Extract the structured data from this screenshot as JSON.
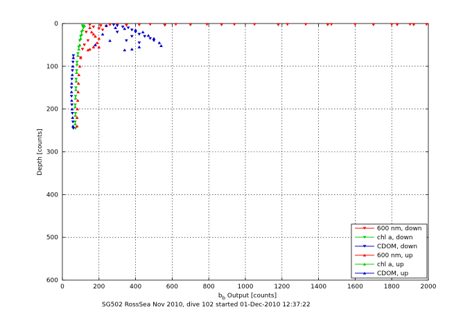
{
  "chart_data": {
    "type": "scatter",
    "xlabel_main": "b",
    "xlabel_sub": "b",
    "xlabel_rest": " Output [counts]",
    "ylabel": "Depth [counts]",
    "caption": "SG502 RossSea Nov 2010, dive 102 started 01-Dec-2010 12:37:22",
    "xlim": [
      0,
      2000
    ],
    "ylim": [
      0,
      600
    ],
    "y_reversed": true,
    "grid": true,
    "legend_position": "bottom-right",
    "xticks": [
      0,
      200,
      400,
      600,
      800,
      1000,
      1200,
      1400,
      1600,
      1800,
      2000
    ],
    "yticks": [
      0,
      100,
      200,
      300,
      400,
      500,
      600
    ],
    "series": [
      {
        "name": "600 nm, down",
        "color": "#ff0000",
        "marker": "triangle-down",
        "points": [
          [
            150,
            3
          ],
          [
            170,
            8
          ],
          [
            200,
            12
          ],
          [
            210,
            5
          ],
          [
            220,
            15
          ],
          [
            240,
            6
          ],
          [
            260,
            3
          ],
          [
            300,
            2
          ],
          [
            350,
            4
          ],
          [
            420,
            3
          ],
          [
            480,
            2
          ],
          [
            560,
            4
          ],
          [
            620,
            2
          ],
          [
            700,
            3
          ],
          [
            790,
            2
          ],
          [
            870,
            3
          ],
          [
            940,
            2
          ],
          [
            1050,
            2
          ],
          [
            1180,
            3
          ],
          [
            1230,
            2
          ],
          [
            1330,
            2
          ],
          [
            1450,
            3
          ],
          [
            1470,
            2
          ],
          [
            1600,
            2
          ],
          [
            1700,
            3
          ],
          [
            1800,
            2
          ],
          [
            1830,
            3
          ],
          [
            1900,
            2
          ],
          [
            1920,
            3
          ],
          [
            1990,
            2
          ],
          [
            130,
            20
          ],
          [
            140,
            40
          ],
          [
            120,
            50
          ],
          [
            110,
            60
          ],
          [
            100,
            80
          ]
        ]
      },
      {
        "name": "chl a, down",
        "color": "#00cc00",
        "marker": "triangle-down",
        "points": [
          [
            110,
            5
          ],
          [
            115,
            10
          ],
          [
            105,
            20
          ],
          [
            100,
            30
          ],
          [
            95,
            40
          ],
          [
            90,
            55
          ],
          [
            85,
            70
          ],
          [
            80,
            90
          ],
          [
            78,
            110
          ],
          [
            75,
            130
          ],
          [
            74,
            150
          ],
          [
            72,
            170
          ],
          [
            70,
            190
          ],
          [
            72,
            210
          ],
          [
            70,
            230
          ],
          [
            72,
            245
          ]
        ]
      },
      {
        "name": "CDOM, down",
        "color": "#0000cc",
        "marker": "triangle-down",
        "points": [
          [
            280,
            3
          ],
          [
            300,
            5
          ],
          [
            330,
            8
          ],
          [
            360,
            10
          ],
          [
            380,
            15
          ],
          [
            400,
            20
          ],
          [
            420,
            25
          ],
          [
            450,
            30
          ],
          [
            480,
            35
          ],
          [
            500,
            40
          ],
          [
            380,
            30
          ],
          [
            420,
            45
          ],
          [
            350,
            40
          ],
          [
            300,
            20
          ],
          [
            60,
            75
          ],
          [
            58,
            90
          ],
          [
            55,
            110
          ],
          [
            52,
            130
          ],
          [
            50,
            150
          ],
          [
            50,
            170
          ],
          [
            52,
            190
          ],
          [
            55,
            210
          ],
          [
            58,
            230
          ],
          [
            60,
            245
          ]
        ]
      },
      {
        "name": "600 nm, up",
        "color": "#ff0000",
        "marker": "triangle-up",
        "points": [
          [
            150,
            10
          ],
          [
            160,
            20
          ],
          [
            170,
            25
          ],
          [
            180,
            30
          ],
          [
            200,
            35
          ],
          [
            190,
            45
          ],
          [
            170,
            55
          ],
          [
            150,
            60
          ],
          [
            140,
            62
          ],
          [
            180,
            50
          ],
          [
            200,
            55
          ],
          [
            100,
            80
          ],
          [
            95,
            100
          ],
          [
            90,
            120
          ],
          [
            88,
            140
          ],
          [
            86,
            160
          ],
          [
            84,
            180
          ],
          [
            82,
            200
          ],
          [
            80,
            220
          ],
          [
            80,
            240
          ]
        ]
      },
      {
        "name": "chl a, up",
        "color": "#00cc00",
        "marker": "triangle-up",
        "points": [
          [
            120,
            5
          ],
          [
            110,
            15
          ],
          [
            105,
            25
          ],
          [
            100,
            35
          ],
          [
            95,
            50
          ],
          [
            90,
            60
          ],
          [
            85,
            75
          ],
          [
            80,
            95
          ],
          [
            78,
            115
          ],
          [
            76,
            135
          ],
          [
            74,
            155
          ],
          [
            72,
            175
          ],
          [
            70,
            195
          ],
          [
            71,
            215
          ],
          [
            70,
            235
          ]
        ]
      },
      {
        "name": "CDOM, up",
        "color": "#0000cc",
        "marker": "triangle-up",
        "points": [
          [
            240,
            5
          ],
          [
            290,
            10
          ],
          [
            340,
            12
          ],
          [
            400,
            15
          ],
          [
            440,
            20
          ],
          [
            470,
            28
          ],
          [
            500,
            35
          ],
          [
            530,
            45
          ],
          [
            540,
            52
          ],
          [
            420,
            55
          ],
          [
            380,
            60
          ],
          [
            340,
            62
          ],
          [
            260,
            40
          ],
          [
            220,
            25
          ],
          [
            180,
            50
          ],
          [
            60,
            80
          ],
          [
            57,
            100
          ],
          [
            54,
            120
          ],
          [
            51,
            140
          ],
          [
            50,
            160
          ],
          [
            51,
            180
          ],
          [
            53,
            200
          ],
          [
            56,
            220
          ],
          [
            58,
            240
          ]
        ]
      }
    ]
  }
}
